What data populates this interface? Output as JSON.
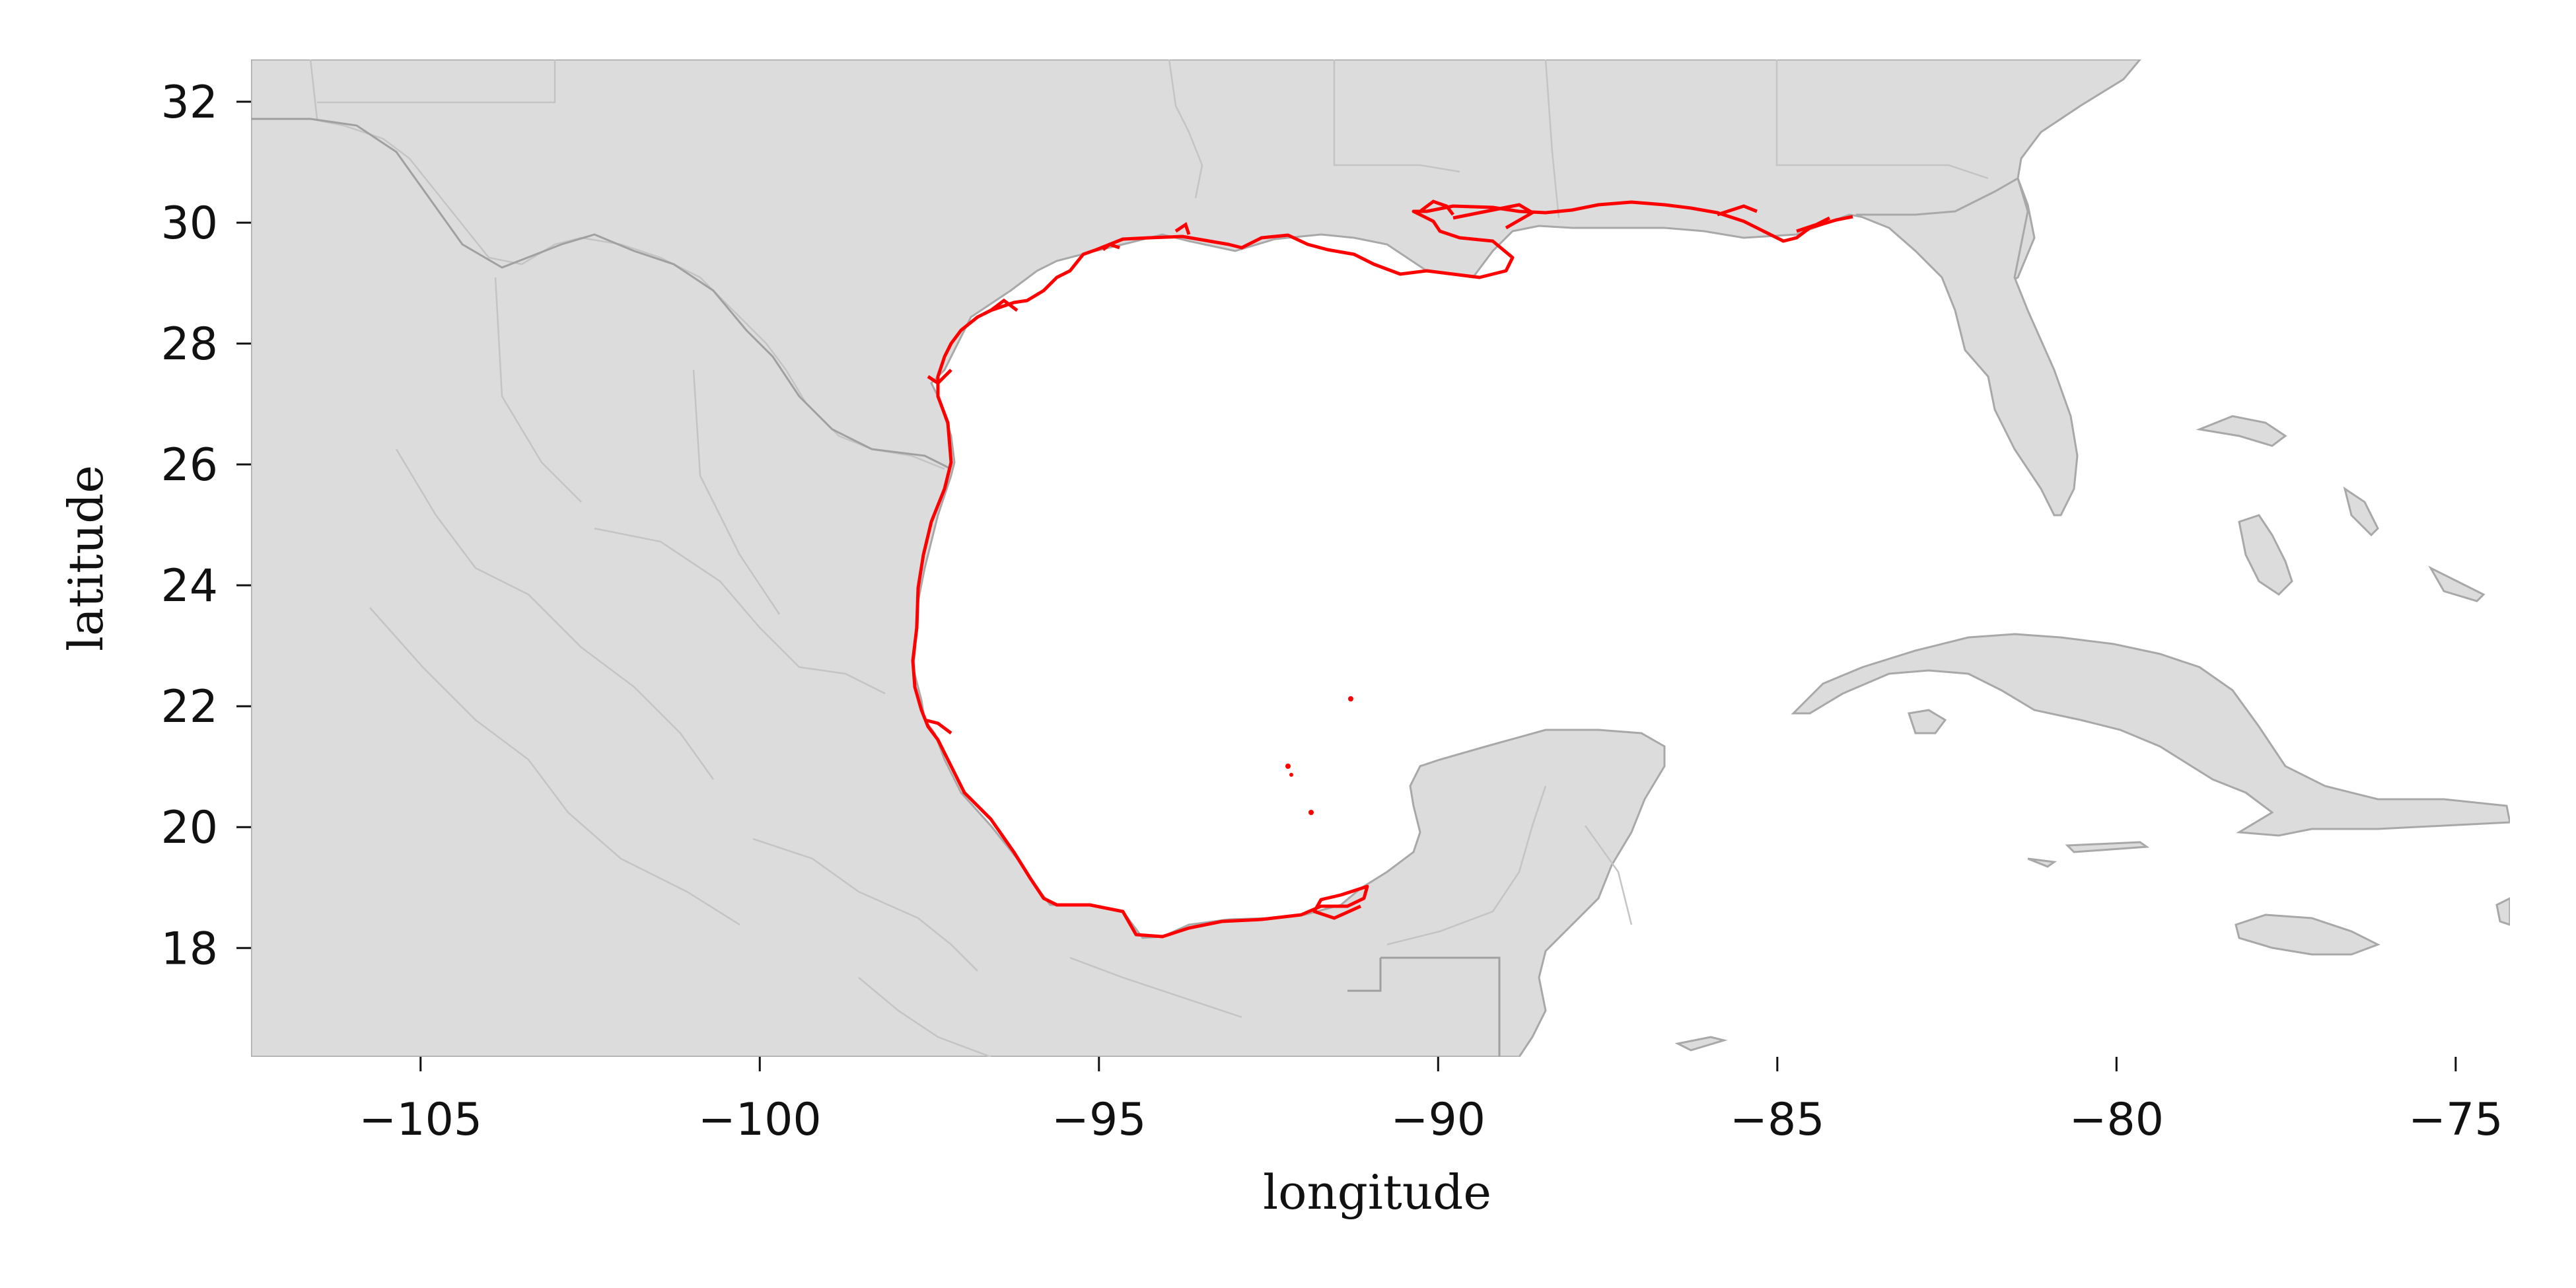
{
  "map": {
    "xlabel": "longitude",
    "ylabel": "latitude",
    "x_ticks": [
      "−105",
      "−100",
      "−95",
      "−90",
      "−85",
      "−80",
      "−75"
    ],
    "y_ticks": [
      "32",
      "30",
      "28",
      "26",
      "24",
      "22",
      "20",
      "18"
    ],
    "x_range": [
      -107.5,
      -74.2
    ],
    "y_range": [
      16.2,
      32.7
    ],
    "colors": {
      "land": "#dcdcdc",
      "land_edge": "#a8a8a8",
      "state_edge": "#c4c4c4",
      "gulf_outline": "#ff0000",
      "water": "#ffffff"
    },
    "highlighted_feature": "Gulf of Mexico coastline"
  }
}
